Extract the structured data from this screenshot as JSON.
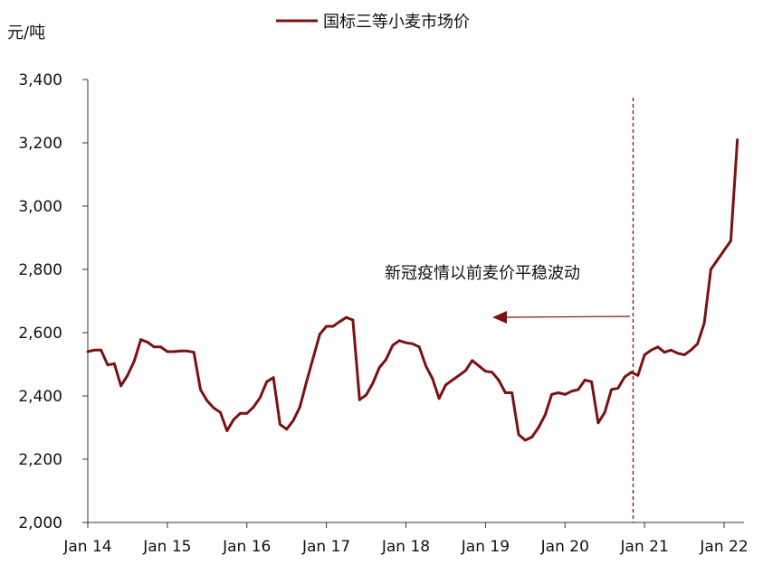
{
  "chart_data": {
    "type": "line",
    "unit_label": "元/吨",
    "legend": {
      "position": "top-center",
      "entries": [
        "国标三等小麦市场价"
      ]
    },
    "colors": {
      "series": "#7b1113",
      "axis": "#333333"
    },
    "ylim": [
      2000,
      3400
    ],
    "y_ticks": [
      2000,
      2200,
      2400,
      2600,
      2800,
      3000,
      3200,
      3400
    ],
    "y_tick_labels": [
      "2,000",
      "2,200",
      "2,400",
      "2,600",
      "2,800",
      "3,000",
      "3,200",
      "3,400"
    ],
    "x_range": [
      "2014-01",
      "2022-04"
    ],
    "x_ticks": [
      "2014-01",
      "2015-01",
      "2016-01",
      "2017-01",
      "2018-01",
      "2019-01",
      "2020-01",
      "2021-01",
      "2022-01"
    ],
    "x_tick_labels": [
      "Jan 14",
      "Jan 15",
      "Jan 16",
      "Jan 17",
      "Jan 18",
      "Jan 19",
      "Jan 20",
      "Jan 21",
      "Jan 22"
    ],
    "grid": false,
    "series": [
      {
        "name": "国标三等小麦市场价",
        "x": [
          "2014-01",
          "2014-02",
          "2014-03",
          "2014-04",
          "2014-05",
          "2014-06",
          "2014-07",
          "2014-08",
          "2014-09",
          "2014-10",
          "2014-11",
          "2014-12",
          "2015-01",
          "2015-02",
          "2015-03",
          "2015-04",
          "2015-05",
          "2015-06",
          "2015-07",
          "2015-08",
          "2015-09",
          "2015-10",
          "2015-11",
          "2015-12",
          "2016-01",
          "2016-02",
          "2016-03",
          "2016-04",
          "2016-05",
          "2016-06",
          "2016-07",
          "2016-08",
          "2016-09",
          "2016-10",
          "2016-11",
          "2016-12",
          "2017-01",
          "2017-02",
          "2017-03",
          "2017-04",
          "2017-05",
          "2017-06",
          "2017-07",
          "2017-08",
          "2017-09",
          "2017-10",
          "2017-11",
          "2017-12",
          "2018-01",
          "2018-02",
          "2018-03",
          "2018-04",
          "2018-05",
          "2018-06",
          "2018-07",
          "2018-08",
          "2018-09",
          "2018-10",
          "2018-11",
          "2018-12",
          "2019-01",
          "2019-02",
          "2019-03",
          "2019-04",
          "2019-05",
          "2019-06",
          "2019-07",
          "2019-08",
          "2019-09",
          "2019-10",
          "2019-11",
          "2019-12",
          "2020-01",
          "2020-02",
          "2020-03",
          "2020-04",
          "2020-05",
          "2020-06",
          "2020-07",
          "2020-08",
          "2020-09",
          "2020-10",
          "2020-11",
          "2020-12",
          "2021-01",
          "2021-02",
          "2021-03",
          "2021-04",
          "2021-05",
          "2021-06",
          "2021-07",
          "2021-08",
          "2021-09",
          "2021-10",
          "2021-11",
          "2021-12",
          "2022-01",
          "2022-02",
          "2022-03"
        ],
        "values": [
          2540,
          2545,
          2545,
          2498,
          2502,
          2432,
          2465,
          2510,
          2578,
          2570,
          2555,
          2555,
          2540,
          2540,
          2542,
          2542,
          2538,
          2420,
          2385,
          2362,
          2348,
          2290,
          2325,
          2345,
          2345,
          2365,
          2395,
          2445,
          2458,
          2310,
          2295,
          2322,
          2365,
          2445,
          2520,
          2595,
          2620,
          2620,
          2635,
          2648,
          2640,
          2388,
          2403,
          2440,
          2490,
          2515,
          2560,
          2575,
          2568,
          2565,
          2555,
          2495,
          2455,
          2392,
          2435,
          2450,
          2465,
          2480,
          2512,
          2495,
          2478,
          2475,
          2450,
          2410,
          2410,
          2278,
          2260,
          2270,
          2300,
          2340,
          2405,
          2410,
          2405,
          2415,
          2420,
          2450,
          2445,
          2315,
          2348,
          2420,
          2425,
          2460,
          2475,
          2465,
          2530,
          2545,
          2555,
          2538,
          2545,
          2535,
          2530,
          2545,
          2565,
          2630,
          2800,
          2830,
          2860,
          2890,
          3210
        ]
      }
    ],
    "event_marker": {
      "x": "2020-11",
      "style": "dashed vertical line"
    },
    "annotation": {
      "text": "新冠疫情以前麦价平稳波动",
      "arrow": "left"
    }
  }
}
